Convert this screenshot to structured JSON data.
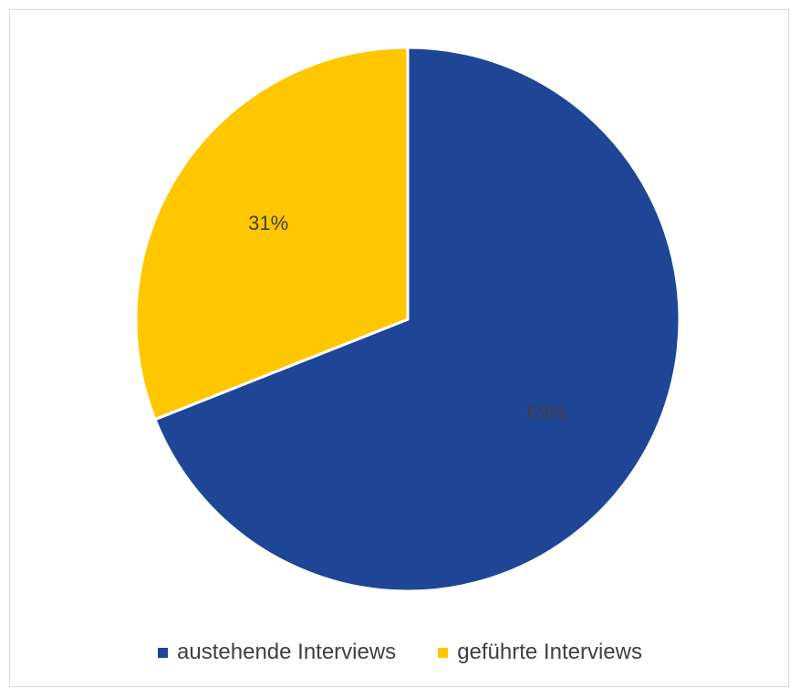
{
  "chart_data": {
    "type": "pie",
    "categories": [
      "austehende Interviews",
      "geführte Interviews"
    ],
    "values": [
      69,
      31
    ],
    "data_labels": [
      "69%",
      "31%"
    ],
    "colors": [
      "#1f4696",
      "#ffc700"
    ],
    "start_angle_deg": 0,
    "direction": "clockwise",
    "legend_position": "bottom",
    "title": ""
  }
}
